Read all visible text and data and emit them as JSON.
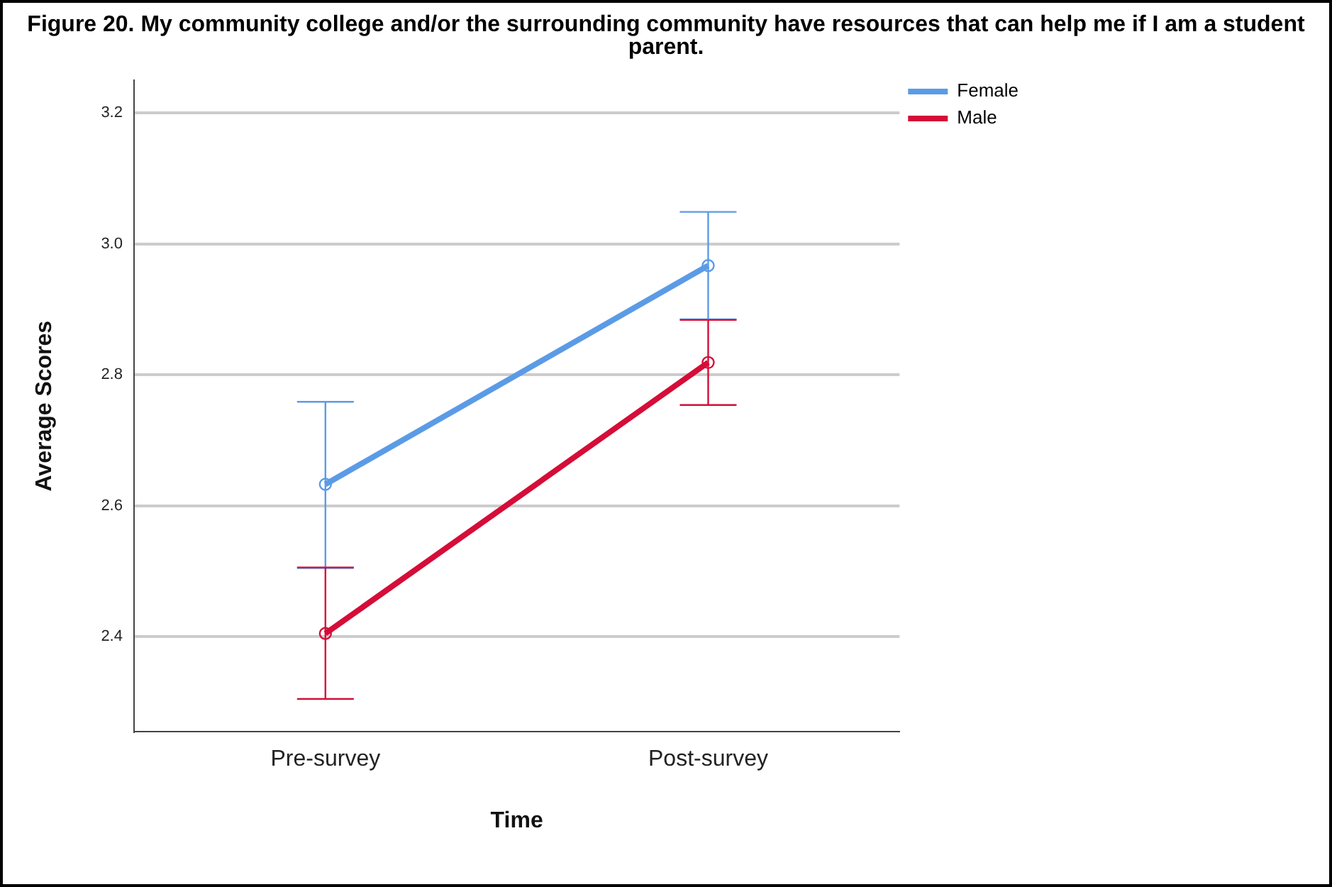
{
  "chart_data": {
    "type": "line",
    "title": "Figure 20. My community college and/or the surrounding community have resources that can help me if I am a student parent.",
    "xlabel": "Time",
    "ylabel": "Average Scores",
    "categories": [
      "Pre-survey",
      "Post-survey"
    ],
    "series": [
      {
        "name": "Female",
        "color": "#5b9be6",
        "values": [
          2.633,
          2.967
        ],
        "errors": [
          [
            2.505,
            2.759
          ],
          [
            2.885,
            3.049
          ]
        ]
      },
      {
        "name": "Male",
        "color": "#d50d38",
        "values": [
          2.405,
          2.819
        ],
        "errors": [
          [
            2.305,
            2.506
          ],
          [
            2.754,
            2.884
          ]
        ]
      }
    ],
    "ylim": [
      2.255,
      3.25
    ],
    "yticks": [
      2.4,
      2.6,
      2.8,
      {
        "value": 3,
        "label": "3.0"
      },
      3.2
    ],
    "grid": "y",
    "legend": "top right",
    "marker": "circle",
    "line_style": "solid"
  }
}
